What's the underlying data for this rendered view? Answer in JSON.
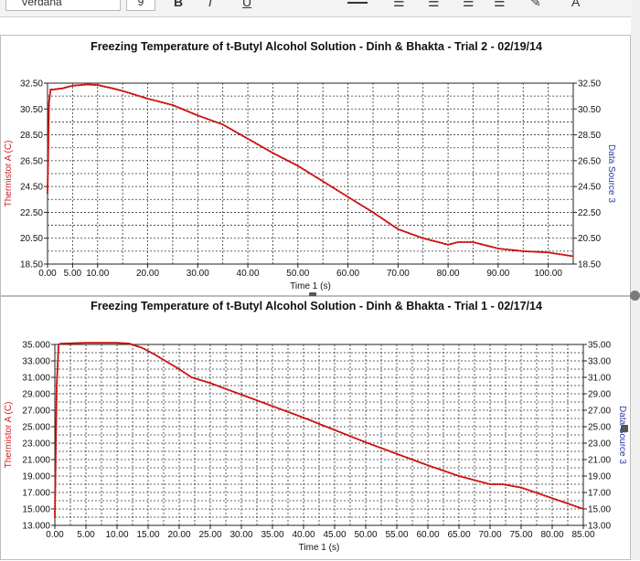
{
  "toolbar": {
    "font_name": "Verdana",
    "font_size": "9",
    "bold": "B",
    "italic": "I",
    "underline": "U"
  },
  "chart_data": [
    {
      "type": "line",
      "title": "Freezing Temperature of t-Butyl Alcohol Solution - Dinh & Bhakta - Trial 2 - 02/19/14",
      "xlabel": "Time 1 (s)",
      "ylabel": "Thermistor A (C)",
      "ylabel_right": "Data Source 3",
      "xlim": [
        0,
        105
      ],
      "ylim": [
        18.5,
        32.5
      ],
      "x_ticks": [
        0,
        5,
        10,
        20,
        30,
        40,
        50,
        60,
        70,
        80,
        90,
        100
      ],
      "x_tick_labels": [
        "0.00",
        "5.00",
        "10.00",
        "20.00",
        "30.00",
        "40.00",
        "50.00",
        "60.00",
        "70.00",
        "80.00",
        "90.00",
        "100.00"
      ],
      "y_ticks": [
        18.5,
        20.5,
        22.5,
        24.5,
        26.5,
        28.5,
        30.5,
        32.5
      ],
      "y_tick_labels": [
        "18.50",
        "20.50",
        "22.50",
        "24.50",
        "26.50",
        "28.50",
        "30.50",
        "32.50"
      ],
      "grid": true,
      "color": "#cc1111",
      "series": [
        {
          "x": [
            0,
            0.3,
            0.6,
            1,
            3,
            5,
            8,
            10,
            13,
            15,
            20,
            25,
            30,
            35,
            40,
            45,
            50,
            55,
            60,
            65,
            70,
            75,
            80,
            82,
            85,
            88,
            90,
            95,
            100,
            105
          ],
          "values": [
            24.0,
            31.0,
            32.0,
            32.0,
            32.1,
            32.3,
            32.4,
            32.35,
            32.1,
            31.9,
            31.3,
            30.8,
            30.0,
            29.3,
            28.2,
            27.1,
            26.1,
            24.9,
            23.7,
            22.5,
            21.2,
            20.5,
            20.0,
            20.2,
            20.2,
            19.9,
            19.7,
            19.5,
            19.4,
            19.1
          ]
        }
      ]
    },
    {
      "type": "line",
      "title": "Freezing Temperature of t-Butyl Alcohol Solution - Dinh & Bhakta - Trial 1 - 02/17/14",
      "xlabel": "Time 1 (s)",
      "ylabel": "Thermistor A (C)",
      "ylabel_right": "Data Source 3",
      "xlim": [
        0,
        85
      ],
      "ylim": [
        13,
        35
      ],
      "x_ticks": [
        0,
        5,
        10,
        15,
        20,
        25,
        30,
        35,
        40,
        45,
        50,
        55,
        60,
        65,
        70,
        75,
        80,
        85
      ],
      "x_tick_labels": [
        "0.00",
        "5.00",
        "10.00",
        "15.00",
        "20.00",
        "25.00",
        "30.00",
        "35.00",
        "40.00",
        "45.00",
        "50.00",
        "55.00",
        "60.00",
        "65.00",
        "70.00",
        "75.00",
        "80.00",
        "85.00"
      ],
      "y_ticks": [
        13,
        15,
        17,
        19,
        21,
        23,
        25,
        27,
        29,
        31,
        33,
        35
      ],
      "y_tick_labels_left": [
        "13.000",
        "15.000",
        "17.000",
        "19.000",
        "21.000",
        "23.000",
        "25.000",
        "27.000",
        "29.000",
        "31.000",
        "33.000",
        "35.000"
      ],
      "y_tick_labels_right": [
        "13.00",
        "15.00",
        "17.00",
        "19.00",
        "21.00",
        "23.00",
        "25.00",
        "27.00",
        "29.00",
        "31.00",
        "33.00",
        "35.00"
      ],
      "grid": true,
      "color": "#cc1111",
      "series": [
        {
          "x": [
            0,
            0.3,
            0.6,
            1,
            5,
            10,
            12,
            14,
            16,
            18,
            20,
            22,
            25,
            30,
            35,
            40,
            45,
            50,
            55,
            60,
            65,
            70,
            72,
            75,
            80,
            85
          ],
          "values": [
            14.0,
            30.0,
            35.0,
            35.1,
            35.2,
            35.2,
            35.1,
            34.6,
            33.8,
            32.9,
            32.0,
            31.0,
            30.3,
            28.9,
            27.5,
            26.1,
            24.6,
            23.1,
            21.7,
            20.3,
            19.0,
            18.0,
            18.0,
            17.6,
            16.3,
            15.0
          ]
        }
      ]
    }
  ]
}
